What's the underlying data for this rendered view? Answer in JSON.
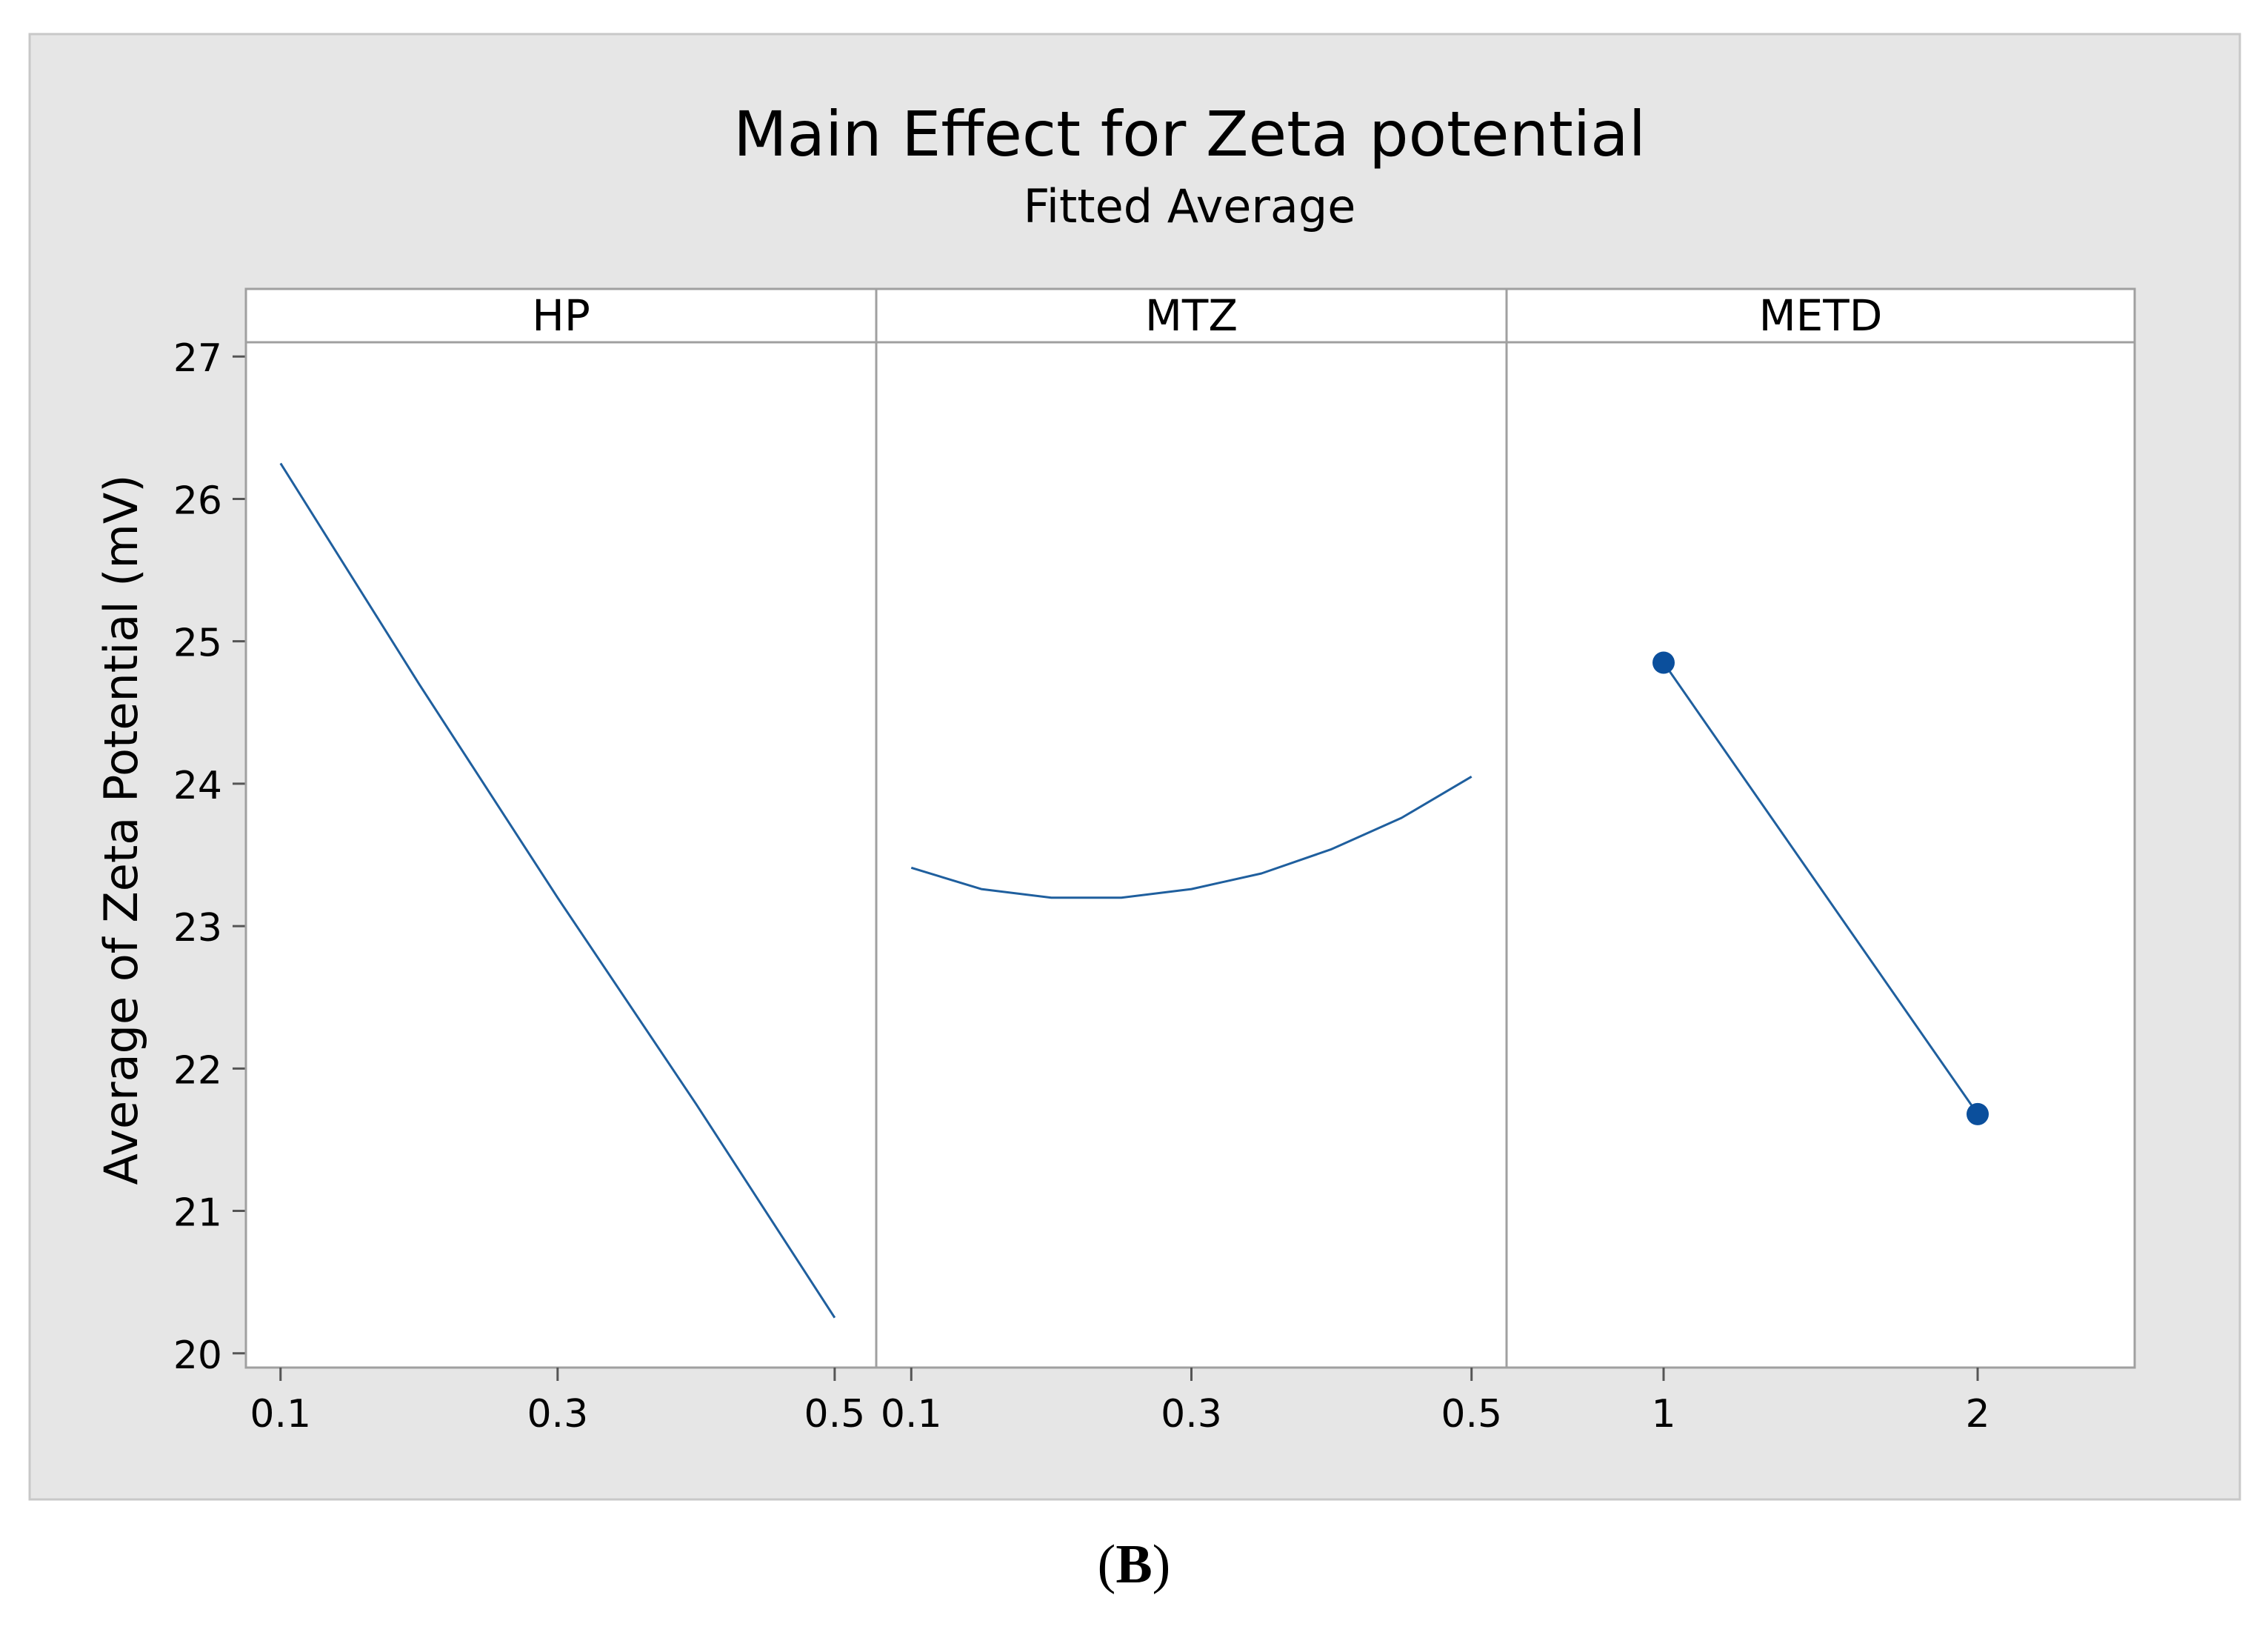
{
  "chart_data": {
    "type": "line",
    "title": "Main Effect for Zeta potential",
    "subtitle": "Fitted Average",
    "ylabel": "Average of Zeta Potential (mV)",
    "ylim": [
      19.9,
      27.1
    ],
    "yticks": [
      20,
      21,
      22,
      23,
      24,
      25,
      26,
      27
    ],
    "line_color": "#1f5f9e",
    "marker_color": "#0b4f9c",
    "frame_color": "#a0a0a0",
    "background_color": "#e6e6e6",
    "panels": [
      {
        "name": "HP",
        "xlim": [
          0.075,
          0.53
        ],
        "xticks": [
          "0.1",
          "0.3",
          "0.5"
        ],
        "markers": false,
        "x": [
          0.1,
          0.2,
          0.3,
          0.4,
          0.5
        ],
        "y": [
          26.25,
          24.7,
          23.2,
          21.75,
          20.25
        ]
      },
      {
        "name": "MTZ",
        "xlim": [
          0.075,
          0.525
        ],
        "xticks": [
          "0.1",
          "0.3",
          "0.5"
        ],
        "markers": false,
        "x": [
          0.1,
          0.15,
          0.2,
          0.25,
          0.3,
          0.35,
          0.4,
          0.45,
          0.5
        ],
        "y": [
          23.41,
          23.26,
          23.2,
          23.2,
          23.26,
          23.37,
          23.54,
          23.76,
          24.05
        ]
      },
      {
        "name": "METD",
        "xlim": [
          0.5,
          2.5
        ],
        "xticks": [
          "1",
          "2"
        ],
        "markers": true,
        "x": [
          1,
          2
        ],
        "y": [
          24.85,
          21.68
        ]
      }
    ]
  },
  "caption": {
    "open": "(",
    "letter": "B",
    "close": ")"
  }
}
